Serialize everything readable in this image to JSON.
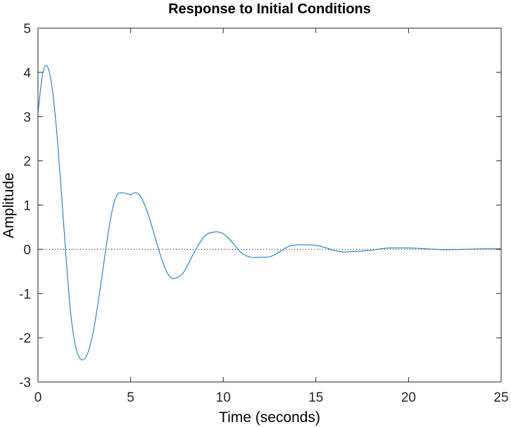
{
  "chart_data": {
    "type": "line",
    "title": "Response to Initial Conditions",
    "xlabel": "Time (seconds)",
    "ylabel": "Amplitude",
    "xlim": [
      0,
      25
    ],
    "ylim": [
      -3,
      5
    ],
    "xticks": [
      0,
      5,
      10,
      15,
      20,
      25
    ],
    "yticks": [
      -3,
      -2,
      -1,
      0,
      1,
      2,
      3,
      4,
      5
    ],
    "grid": false,
    "reference_line": {
      "y": 0,
      "style": "dotted",
      "color": "#000000"
    },
    "series": [
      {
        "color": "#0072BD",
        "x": [
          0,
          0.25,
          0.5,
          0.75,
          1.0,
          1.25,
          1.5,
          1.75,
          2.0,
          2.25,
          2.5,
          2.75,
          3.0,
          3.25,
          3.5,
          3.75,
          4.0,
          4.25,
          4.5,
          4.75,
          5.0,
          5.25,
          5.5,
          5.75,
          6.0,
          6.25,
          6.5,
          6.75,
          7.0,
          7.25,
          7.5,
          7.75,
          8.0,
          8.5,
          9.0,
          9.5,
          10.0,
          10.5,
          11.0,
          11.5,
          12.0,
          12.5,
          13.0,
          13.5,
          14.0,
          14.5,
          15.0,
          15.5,
          16.0,
          16.5,
          17.0,
          17.5,
          18.0,
          18.5,
          19.0,
          19.5,
          20.0,
          21.0,
          22.0,
          23.0,
          24.0,
          25.0
        ],
        "y": [
          3.1,
          3.96,
          4.14,
          3.68,
          2.71,
          1.36,
          -0.09,
          -1.39,
          -2.14,
          -2.46,
          -2.48,
          -2.27,
          -1.82,
          -1.19,
          -0.47,
          0.26,
          0.87,
          1.22,
          1.28,
          1.26,
          1.24,
          1.28,
          1.22,
          1.01,
          0.72,
          0.37,
          0.01,
          -0.31,
          -0.55,
          -0.66,
          -0.64,
          -0.58,
          -0.42,
          -0.02,
          0.3,
          0.39,
          0.35,
          0.15,
          -0.09,
          -0.18,
          -0.18,
          -0.17,
          -0.07,
          0.06,
          0.1,
          0.1,
          0.09,
          0.04,
          -0.03,
          -0.06,
          -0.05,
          -0.04,
          -0.02,
          0.01,
          0.03,
          0.03,
          0.03,
          0.01,
          -0.01,
          0.0,
          0.01,
          0.01
        ]
      }
    ]
  }
}
